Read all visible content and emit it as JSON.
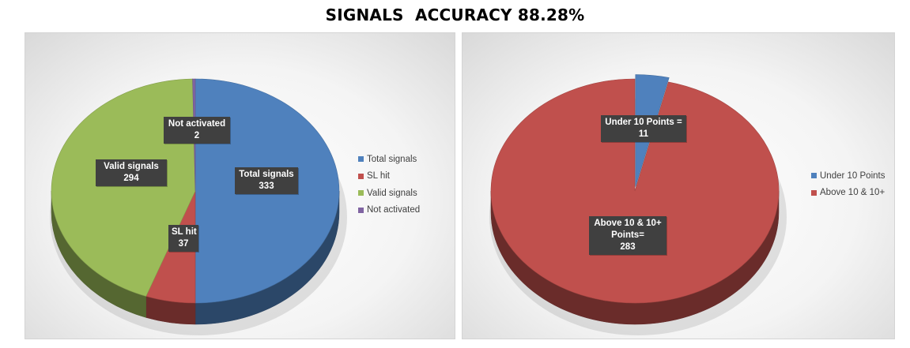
{
  "title": "SIGNALS  ACCURACY 88.28%",
  "chart_data": [
    {
      "type": "pie",
      "style": "3d",
      "categories": [
        "Total signals",
        "SL hit",
        "Valid signals",
        "Not activated"
      ],
      "values": [
        333,
        37,
        294,
        2
      ],
      "colors": [
        "#4f81bd",
        "#c0504d",
        "#9bbb59",
        "#8064a2"
      ],
      "data_labels": [
        {
          "name": "Total signals",
          "value": "333"
        },
        {
          "name": "SL hit",
          "value": "37"
        },
        {
          "name": "Valid signals",
          "value": "294"
        },
        {
          "name": "Not activated",
          "value": "2"
        }
      ],
      "legend_position": "right"
    },
    {
      "type": "pie",
      "style": "3d",
      "categories": [
        "Under 10 Points",
        "Above 10 & 10+"
      ],
      "values": [
        11,
        283
      ],
      "colors": [
        "#4f81bd",
        "#c0504d"
      ],
      "data_labels": [
        {
          "name": "Under 10 Points =",
          "value": "11"
        },
        {
          "name": "Above 10 & 10+ Points=",
          "value": "283"
        }
      ],
      "legend_position": "right"
    }
  ]
}
